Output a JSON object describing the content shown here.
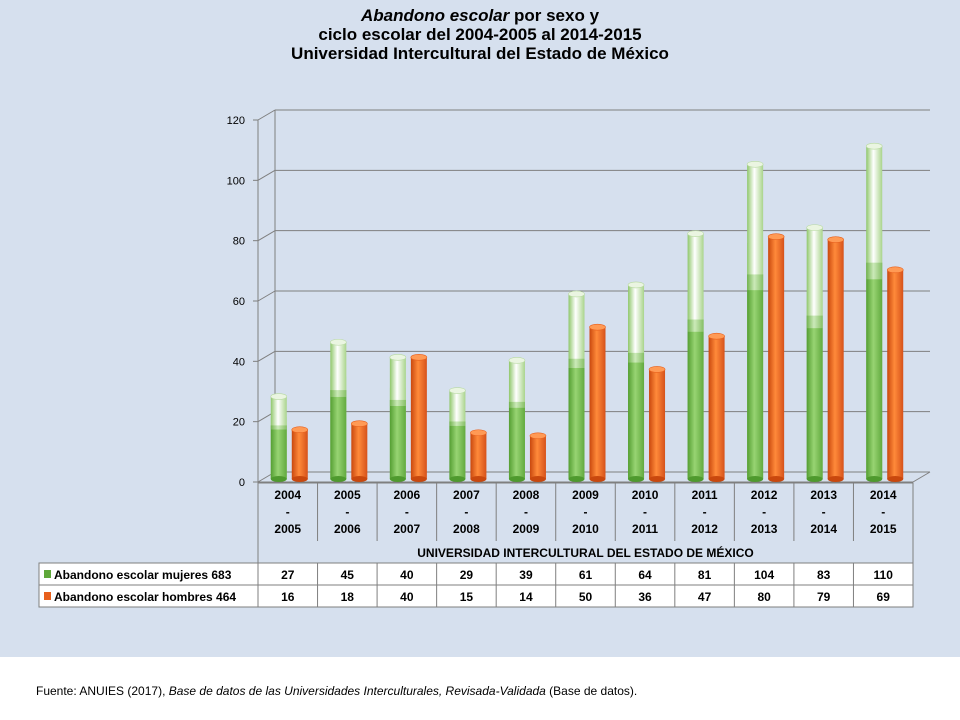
{
  "title": {
    "line1_italic": "Abandono escolar",
    "line1_rest": " por sexo y",
    "line2": "ciclo escolar del  2004-2005 al 2014-2015",
    "line3": "Universidad Intercultural del Estado de México"
  },
  "chart_data": {
    "type": "bar",
    "categories": [
      [
        "2004",
        "-",
        "2005"
      ],
      [
        "2005",
        "-",
        "2006"
      ],
      [
        "2006",
        "-",
        "2007"
      ],
      [
        "2007",
        "-",
        "2008"
      ],
      [
        "2008",
        "-",
        "2009"
      ],
      [
        "2009",
        "-",
        "2010"
      ],
      [
        "2010",
        "-",
        "2011"
      ],
      [
        "2011",
        "-",
        "2012"
      ],
      [
        "2012",
        "-",
        "2013"
      ],
      [
        "2013",
        "-",
        "2014"
      ],
      [
        "2014",
        "-",
        "2015"
      ]
    ],
    "xlabel": "UNIVERSIDAD INTERCULTURAL DEL ESTADO DE MÉXICO",
    "ylim": [
      0,
      120
    ],
    "yticks": [
      0,
      20,
      40,
      60,
      80,
      100,
      120
    ],
    "grid": true,
    "series": [
      {
        "name": "Abandono escolar mujeres  683",
        "color": "#5fa83a",
        "values": [
          27,
          45,
          40,
          29,
          39,
          61,
          64,
          81,
          104,
          83,
          110
        ]
      },
      {
        "name": "Abandono escolar hombres 464",
        "color": "#e8601c",
        "values": [
          16,
          18,
          40,
          15,
          14,
          50,
          36,
          47,
          80,
          79,
          69
        ]
      }
    ]
  },
  "footer": {
    "prefix": "Fuente: ANUIES (2017), ",
    "italic": "Base de datos de las Universidades  Interculturales, Revisada-Validada",
    "suffix": " (Base de datos)."
  }
}
